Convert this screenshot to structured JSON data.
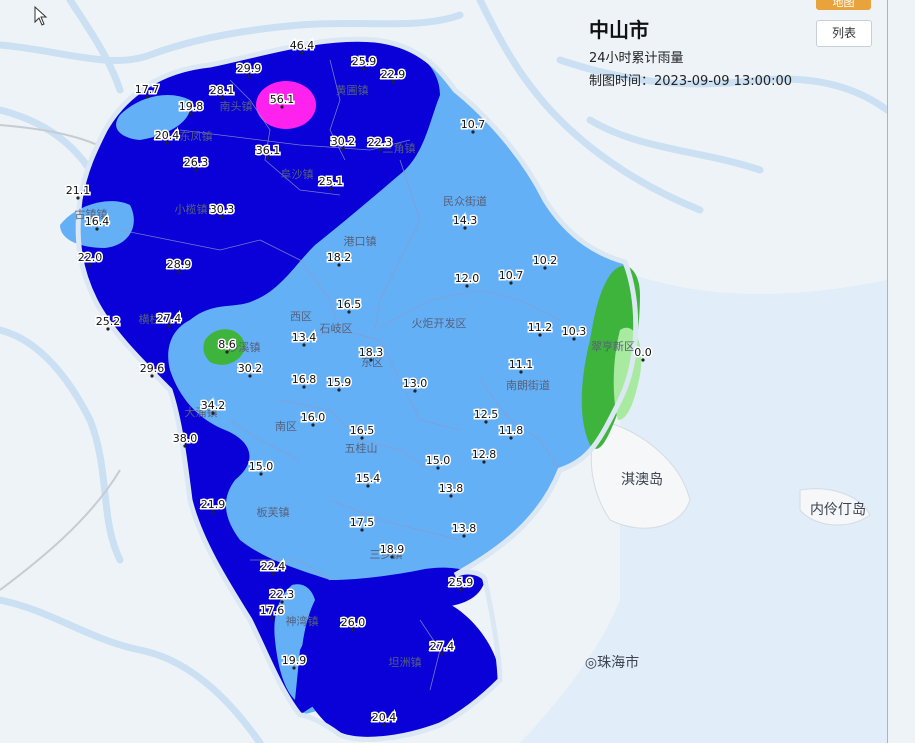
{
  "header": {
    "title": "中山市",
    "subtitle": "24小时累计雨量",
    "time": "制图时间：2023-09-09 13:00:00"
  },
  "buttons": {
    "top_label": "地图",
    "list_label": "列表"
  },
  "legend_colors": {
    "l1": "#64b0f7",
    "l2": "#0a00d8",
    "l3": "#ff22ee",
    "l4": "#3fb43c",
    "l5": "#a8eaa0"
  },
  "islands": [
    "淇澳岛",
    "内伶仃岛",
    "珠海市"
  ],
  "places": [
    "南头镇",
    "黄圃镇",
    "东凤镇",
    "三角镇",
    "阜沙镇",
    "小榄镇",
    "古镇镇",
    "民众街道",
    "港口镇",
    "西区",
    "石岐区",
    "火炬开发区",
    "东区",
    "沙溪镇",
    "横栏镇",
    "大涌镇",
    "南朗街道",
    "翠亨新区",
    "南区",
    "五桂山",
    "板芙镇",
    "三乡镇",
    "神湾镇",
    "坦洲镇"
  ],
  "stations": [
    {
      "v": "46.4"
    },
    {
      "v": "25.9"
    },
    {
      "v": "22.9"
    },
    {
      "v": "29.9"
    },
    {
      "v": "17.7"
    },
    {
      "v": "28.1"
    },
    {
      "v": "19.8"
    },
    {
      "v": "56.1"
    },
    {
      "v": "10.7"
    },
    {
      "v": "20.4"
    },
    {
      "v": "30.2"
    },
    {
      "v": "22.3"
    },
    {
      "v": "36.1"
    },
    {
      "v": "26.3"
    },
    {
      "v": "25.1"
    },
    {
      "v": "21.1"
    },
    {
      "v": "30.3"
    },
    {
      "v": "16.4"
    },
    {
      "v": "14.3"
    },
    {
      "v": "22.0"
    },
    {
      "v": "18.2"
    },
    {
      "v": "28.9"
    },
    {
      "v": "12.0"
    },
    {
      "v": "10.7"
    },
    {
      "v": "10.2"
    },
    {
      "v": "16.5"
    },
    {
      "v": "25.2"
    },
    {
      "v": "27.4"
    },
    {
      "v": "11.2"
    },
    {
      "v": "10.3"
    },
    {
      "v": "13.4"
    },
    {
      "v": "8.6"
    },
    {
      "v": "18.3"
    },
    {
      "v": "0.0"
    },
    {
      "v": "11.1"
    },
    {
      "v": "29.6"
    },
    {
      "v": "30.2"
    },
    {
      "v": "16.8"
    },
    {
      "v": "15.9"
    },
    {
      "v": "13.0"
    },
    {
      "v": "34.2"
    },
    {
      "v": "16.0"
    },
    {
      "v": "12.5"
    },
    {
      "v": "11.8"
    },
    {
      "v": "38.0"
    },
    {
      "v": "16.5"
    },
    {
      "v": "12.8"
    },
    {
      "v": "15.0"
    },
    {
      "v": "15.0"
    },
    {
      "v": "15.4"
    },
    {
      "v": "13.8"
    },
    {
      "v": "21.9"
    },
    {
      "v": "17.5"
    },
    {
      "v": "13.8"
    },
    {
      "v": "18.9"
    },
    {
      "v": "22.4"
    },
    {
      "v": "25.9"
    },
    {
      "v": "22.3"
    },
    {
      "v": "17.6"
    },
    {
      "v": "26.0"
    },
    {
      "v": "27.4"
    },
    {
      "v": "19.9"
    },
    {
      "v": "20.4"
    }
  ]
}
